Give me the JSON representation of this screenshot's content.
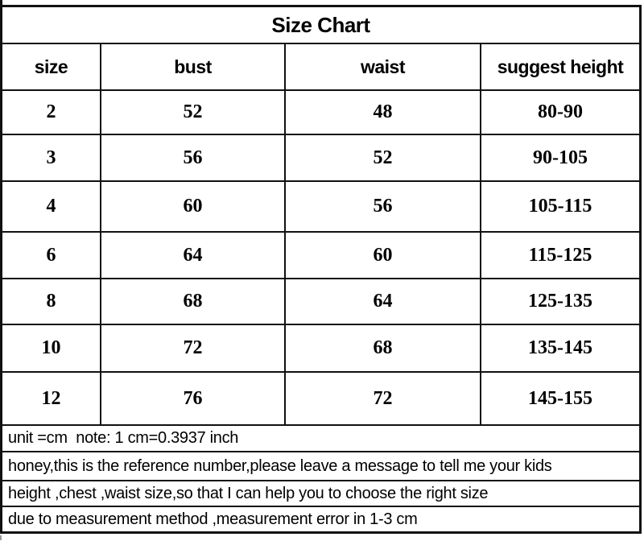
{
  "title": "Size Chart",
  "table": {
    "headers": [
      "size",
      "bust",
      "waist",
      "suggest height"
    ],
    "rows": [
      [
        "2",
        "52",
        "48",
        "80-90"
      ],
      [
        "3",
        "56",
        "52",
        "90-105"
      ],
      [
        "4",
        "60",
        "56",
        "105-115"
      ],
      [
        "6",
        "64",
        "60",
        "115-125"
      ],
      [
        "8",
        "68",
        "64",
        "125-135"
      ],
      [
        "10",
        "72",
        "68",
        "135-145"
      ],
      [
        "12",
        "76",
        "72",
        "145-155"
      ]
    ]
  },
  "notes": [
    "unit =cm  note: 1 cm=0.3937 inch",
    "honey,this is the reference number,please leave a message to tell me your kids",
    "height ,chest ,waist size,so that I can help you to choose the right size",
    "due to measurement method ,measurement error in 1-3 cm"
  ],
  "colors": {
    "border": "#111111",
    "text": "#000000",
    "background": "#ffffff"
  }
}
